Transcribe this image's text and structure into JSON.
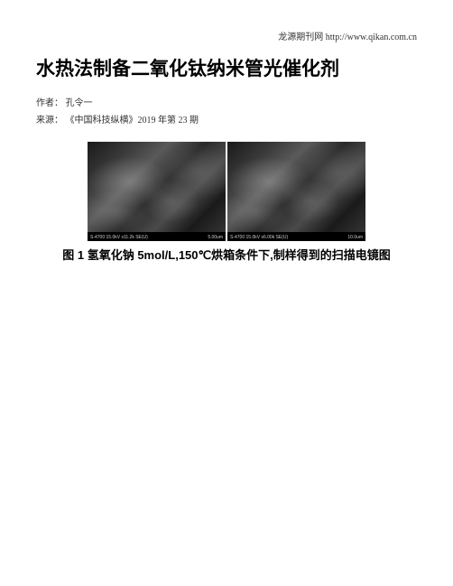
{
  "header": {
    "site_text": "龙源期刊网 http://www.qikan.com.cn"
  },
  "article": {
    "title": "水热法制备二氧化钛纳米管光催化剂",
    "author_label": "作者：",
    "author_name": "孔令一",
    "source_label": "来源：",
    "source_text": "《中国科技纵横》2019 年第 23 期"
  },
  "figure": {
    "caption": "图 1 氢氧化钠 5mol/L,150℃烘箱条件下,制样得到的扫描电镜图",
    "image_left": {
      "label": "S-4700 15.0kV x11.2k SE(U)",
      "scale": "5.00um"
    },
    "image_right": {
      "label": "S-4700 15.0kV x6.00k SE(U)",
      "scale": "10.0um"
    },
    "background_color": "#ffffff",
    "text_color": "#000000",
    "meta_color": "#333333"
  }
}
